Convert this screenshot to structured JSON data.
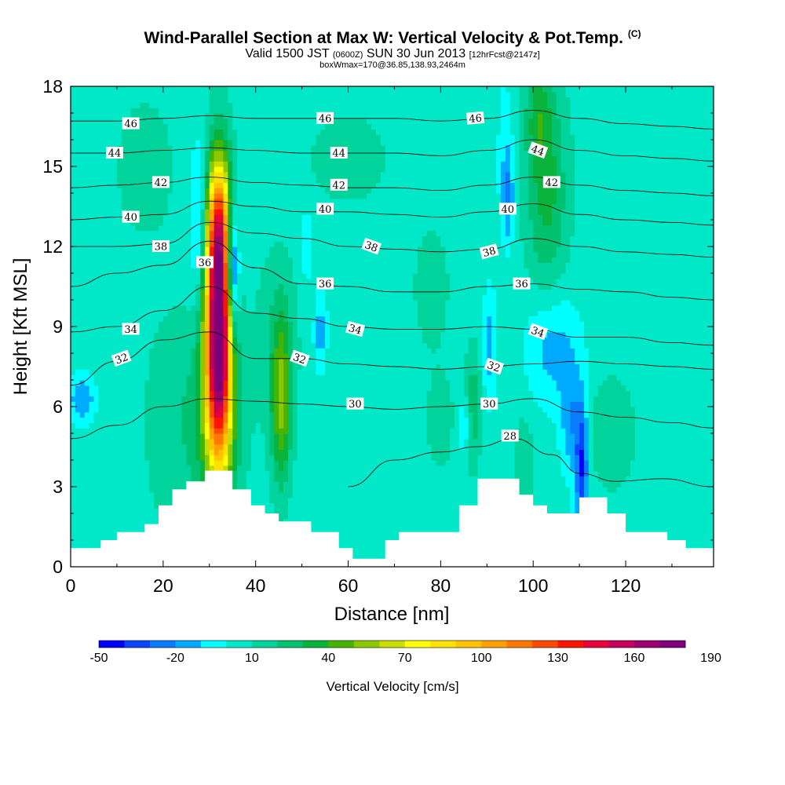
{
  "title": {
    "main": "Wind-Parallel Section at Max W: Vertical Velocity & Pot.Temp.",
    "main_mark": "(C)",
    "valid_a": "Valid 1500 JST",
    "valid_z": "(0600Z)",
    "valid_b": "SUN 30 Jun 2013",
    "valid_fcst": "[12hrFcst@2147z]",
    "sub": "boxWmax=170@36.85,138.93,2464m"
  },
  "chart_data": {
    "type": "heatmap",
    "xlabel": "Distance [nm]",
    "ylabel": "Height [Kft MSL]",
    "xlim": [
      0,
      139
    ],
    "ylim": [
      0,
      18
    ],
    "xticks": [
      0,
      20,
      40,
      60,
      80,
      100,
      120
    ],
    "yticks": [
      0,
      3,
      6,
      9,
      12,
      15,
      18
    ],
    "colorbar": {
      "title": "Vertical Velocity [cm/s]",
      "min": -50,
      "step": 10,
      "tick_labels": [
        "-50",
        "-20",
        "10",
        "40",
        "70",
        "100",
        "130",
        "160",
        "190"
      ],
      "tick_values": [
        -50,
        -20,
        10,
        40,
        70,
        100,
        130,
        160,
        190
      ],
      "colors": [
        "#0000ff",
        "#0a46ff",
        "#0a7cff",
        "#00aaff",
        "#00ffff",
        "#00e8c8",
        "#00d49c",
        "#00c270",
        "#0ab43c",
        "#46b400",
        "#8cc800",
        "#c8dc00",
        "#ffff00",
        "#ffe100",
        "#ffc300",
        "#ffa000",
        "#ff7800",
        "#ff4b00",
        "#ff1400",
        "#e6003c",
        "#c3005a",
        "#9b006e",
        "#7d0078"
      ]
    },
    "terrain_kft": [
      [
        0,
        0.7
      ],
      [
        6.5,
        0.7
      ],
      [
        6.5,
        1.0
      ],
      [
        10,
        1.0
      ],
      [
        10,
        1.3
      ],
      [
        16,
        1.3
      ],
      [
        16,
        1.6
      ],
      [
        19,
        1.6
      ],
      [
        19,
        2.3
      ],
      [
        22,
        2.3
      ],
      [
        22,
        2.9
      ],
      [
        25,
        2.9
      ],
      [
        25,
        3.2
      ],
      [
        29,
        3.2
      ],
      [
        29,
        3.6
      ],
      [
        35,
        3.6
      ],
      [
        35,
        2.9
      ],
      [
        39,
        2.9
      ],
      [
        39,
        2.3
      ],
      [
        42,
        2.3
      ],
      [
        42,
        2.0
      ],
      [
        45,
        2.0
      ],
      [
        45,
        1.7
      ],
      [
        52,
        1.7
      ],
      [
        52,
        1.3
      ],
      [
        58,
        1.3
      ],
      [
        58,
        0.7
      ],
      [
        61,
        0.7
      ],
      [
        61,
        0.3
      ],
      [
        68,
        0.3
      ],
      [
        68,
        1.0
      ],
      [
        71,
        1.0
      ],
      [
        71,
        1.3
      ],
      [
        84,
        1.3
      ],
      [
        84,
        2.3
      ],
      [
        88,
        2.3
      ],
      [
        88,
        3.3
      ],
      [
        97,
        3.3
      ],
      [
        97,
        2.7
      ],
      [
        100,
        2.7
      ],
      [
        100,
        2.3
      ],
      [
        103,
        2.3
      ],
      [
        103,
        2.0
      ],
      [
        110,
        2.0
      ],
      [
        110,
        2.6
      ],
      [
        116,
        2.6
      ],
      [
        116,
        2.0
      ],
      [
        120,
        2.0
      ],
      [
        120,
        1.3
      ],
      [
        129,
        1.3
      ],
      [
        129,
        1.0
      ],
      [
        133,
        1.0
      ],
      [
        133,
        0.7
      ],
      [
        139,
        0.7
      ]
    ],
    "w_features": [
      {
        "x": 32,
        "z": 9.0,
        "sx": 2.0,
        "sz": 3.4,
        "w": 180
      },
      {
        "x": 31.5,
        "z": 5.5,
        "sx": 3.8,
        "sz": 2.6,
        "w": 30
      },
      {
        "x": 32,
        "z": 13.0,
        "sx": 2.2,
        "sz": 1.8,
        "w": 55
      },
      {
        "x": 35,
        "z": 11.2,
        "sx": 1.0,
        "sz": 1.8,
        "w": -70
      },
      {
        "x": 28,
        "z": 13.0,
        "sx": 1.5,
        "sz": 2.0,
        "w": -30
      },
      {
        "x": 45.5,
        "z": 6.2,
        "sx": 1.5,
        "sz": 2.2,
        "w": 45
      },
      {
        "x": 44.5,
        "z": 8.5,
        "sx": 3.5,
        "sz": 2.5,
        "w": 12
      },
      {
        "x": 2.5,
        "z": 6.3,
        "sx": 2.0,
        "sz": 0.6,
        "w": -25
      },
      {
        "x": 22,
        "z": 5.5,
        "sx": 4.5,
        "sz": 3.0,
        "w": 12
      },
      {
        "x": 103,
        "z": 14.0,
        "sx": 3.2,
        "sz": 3.0,
        "w": 28
      },
      {
        "x": 101,
        "z": 17.0,
        "sx": 2.0,
        "sz": 1.5,
        "w": 20
      },
      {
        "x": 94,
        "z": 16.3,
        "sx": 1.2,
        "sz": 1.5,
        "w": -10
      },
      {
        "x": 94.5,
        "z": 13.8,
        "sx": 1.0,
        "sz": 1.2,
        "w": -28
      },
      {
        "x": 104,
        "z": 8.3,
        "sx": 4.0,
        "sz": 1.6,
        "w": -22
      },
      {
        "x": 110.5,
        "z": 3.8,
        "sx": 1.0,
        "sz": 1.8,
        "w": -45
      },
      {
        "x": 108,
        "z": 5.5,
        "sx": 1.5,
        "sz": 1.5,
        "w": -22
      },
      {
        "x": 117,
        "z": 5.0,
        "sx": 3.5,
        "sz": 1.5,
        "w": 14
      },
      {
        "x": 87,
        "z": 6.0,
        "sx": 1.2,
        "sz": 1.6,
        "w": 22
      },
      {
        "x": 98,
        "z": 3.8,
        "sx": 1.5,
        "sz": 1.4,
        "w": 14
      },
      {
        "x": 90.5,
        "z": 8.3,
        "sx": 1.0,
        "sz": 1.5,
        "w": -20
      },
      {
        "x": 78,
        "z": 10.5,
        "sx": 2.5,
        "sz": 1.5,
        "w": 14
      },
      {
        "x": 60,
        "z": 15.3,
        "sx": 6.0,
        "sz": 1.2,
        "w": 12
      },
      {
        "x": 16,
        "z": 15.0,
        "sx": 5.0,
        "sz": 2.0,
        "w": 10
      },
      {
        "x": 54,
        "z": 8.8,
        "sx": 1.0,
        "sz": 1.0,
        "w": -20
      },
      {
        "x": 51,
        "z": 12.0,
        "sx": 0.8,
        "sz": 1.0,
        "w": -15
      },
      {
        "x": 85,
        "z": 5.3,
        "sx": 1.0,
        "sz": 0.7,
        "w": -20
      },
      {
        "x": 80,
        "z": 5.5,
        "sx": 2.5,
        "sz": 1.4,
        "w": 10
      }
    ],
    "w_background": 5,
    "theta_contours": [
      {
        "value": 28,
        "label": "28",
        "points": [
          [
            60,
            3.0
          ],
          [
            70,
            4.0
          ],
          [
            80,
            4.3
          ],
          [
            88,
            4.5
          ],
          [
            96,
            4.8
          ],
          [
            104,
            4.2
          ],
          [
            110,
            3.5
          ],
          [
            118,
            3.2
          ],
          [
            128,
            3.3
          ],
          [
            139,
            3.0
          ]
        ]
      },
      {
        "value": 30,
        "label": "30",
        "points": [
          [
            0,
            4.8
          ],
          [
            10,
            5.3
          ],
          [
            20,
            6.0
          ],
          [
            30,
            6.3
          ],
          [
            40,
            6.2
          ],
          [
            50,
            6.1
          ],
          [
            60,
            6.0
          ],
          [
            70,
            5.9
          ],
          [
            80,
            6.0
          ],
          [
            90,
            6.1
          ],
          [
            100,
            6.3
          ],
          [
            110,
            5.8
          ],
          [
            120,
            5.6
          ],
          [
            130,
            5.4
          ],
          [
            139,
            5.2
          ]
        ]
      },
      {
        "value": 32,
        "label": "32",
        "points": [
          [
            0,
            6.8
          ],
          [
            10,
            7.7
          ],
          [
            20,
            8.5
          ],
          [
            30,
            8.8
          ],
          [
            40,
            7.8
          ],
          [
            50,
            7.8
          ],
          [
            60,
            7.6
          ],
          [
            70,
            7.5
          ],
          [
            80,
            7.4
          ],
          [
            90,
            7.5
          ],
          [
            100,
            7.6
          ],
          [
            110,
            7.7
          ],
          [
            120,
            7.6
          ],
          [
            130,
            7.5
          ],
          [
            139,
            7.4
          ]
        ]
      },
      {
        "value": 34,
        "label": "34",
        "points": [
          [
            0,
            8.8
          ],
          [
            10,
            9.0
          ],
          [
            20,
            9.6
          ],
          [
            30,
            10.5
          ],
          [
            40,
            9.5
          ],
          [
            50,
            9.3
          ],
          [
            60,
            9.0
          ],
          [
            70,
            8.9
          ],
          [
            80,
            8.9
          ],
          [
            90,
            9.0
          ],
          [
            100,
            8.9
          ],
          [
            110,
            8.6
          ],
          [
            120,
            8.6
          ],
          [
            130,
            8.4
          ],
          [
            139,
            8.3
          ]
        ]
      },
      {
        "value": 36,
        "label": "36",
        "points": [
          [
            0,
            10.5
          ],
          [
            10,
            11.0
          ],
          [
            20,
            11.3
          ],
          [
            30,
            12.2
          ],
          [
            40,
            11.2
          ],
          [
            50,
            10.6
          ],
          [
            60,
            10.5
          ],
          [
            70,
            10.3
          ],
          [
            80,
            10.3
          ],
          [
            90,
            10.5
          ],
          [
            100,
            10.6
          ],
          [
            110,
            10.4
          ],
          [
            120,
            10.3
          ],
          [
            130,
            10.1
          ],
          [
            139,
            10.0
          ]
        ]
      },
      {
        "value": 38,
        "label": "38",
        "points": [
          [
            0,
            12.0
          ],
          [
            10,
            12.0
          ],
          [
            20,
            12.1
          ],
          [
            30,
            12.9
          ],
          [
            40,
            12.5
          ],
          [
            50,
            12.3
          ],
          [
            60,
            12.0
          ],
          [
            70,
            11.9
          ],
          [
            80,
            11.8
          ],
          [
            90,
            11.9
          ],
          [
            100,
            12.3
          ],
          [
            110,
            12.0
          ],
          [
            120,
            11.8
          ],
          [
            130,
            11.7
          ],
          [
            139,
            11.6
          ]
        ]
      },
      {
        "value": 40,
        "label": "40",
        "points": [
          [
            0,
            13.0
          ],
          [
            10,
            13.1
          ],
          [
            20,
            13.2
          ],
          [
            30,
            13.7
          ],
          [
            40,
            13.5
          ],
          [
            50,
            13.3
          ],
          [
            60,
            13.3
          ],
          [
            70,
            13.2
          ],
          [
            80,
            13.1
          ],
          [
            90,
            13.3
          ],
          [
            100,
            13.6
          ],
          [
            110,
            13.2
          ],
          [
            120,
            13.0
          ],
          [
            130,
            12.9
          ],
          [
            139,
            12.8
          ]
        ]
      },
      {
        "value": 42,
        "label": "42",
        "points": [
          [
            0,
            14.2
          ],
          [
            10,
            14.3
          ],
          [
            20,
            14.4
          ],
          [
            30,
            14.6
          ],
          [
            40,
            14.4
          ],
          [
            50,
            14.3
          ],
          [
            60,
            14.2
          ],
          [
            70,
            14.2
          ],
          [
            80,
            14.1
          ],
          [
            90,
            14.3
          ],
          [
            100,
            14.6
          ],
          [
            110,
            14.3
          ],
          [
            120,
            14.1
          ],
          [
            130,
            14.0
          ],
          [
            139,
            13.9
          ]
        ]
      },
      {
        "value": 44,
        "label": "44",
        "points": [
          [
            0,
            15.5
          ],
          [
            10,
            15.5
          ],
          [
            20,
            15.6
          ],
          [
            30,
            15.7
          ],
          [
            40,
            15.6
          ],
          [
            50,
            15.5
          ],
          [
            60,
            15.5
          ],
          [
            70,
            15.5
          ],
          [
            80,
            15.4
          ],
          [
            90,
            15.6
          ],
          [
            100,
            16.0
          ],
          [
            110,
            15.6
          ],
          [
            120,
            15.4
          ],
          [
            130,
            15.3
          ],
          [
            139,
            15.2
          ]
        ]
      },
      {
        "value": 46,
        "label": "46",
        "points": [
          [
            0,
            16.7
          ],
          [
            10,
            16.7
          ],
          [
            20,
            16.8
          ],
          [
            30,
            16.9
          ],
          [
            40,
            16.8
          ],
          [
            50,
            16.8
          ],
          [
            60,
            16.8
          ],
          [
            70,
            16.8
          ],
          [
            80,
            16.7
          ],
          [
            90,
            16.8
          ],
          [
            100,
            17.1
          ],
          [
            110,
            16.8
          ],
          [
            120,
            16.6
          ],
          [
            130,
            16.5
          ],
          [
            139,
            16.4
          ]
        ]
      }
    ],
    "contour_labels": [
      {
        "text": "46",
        "x": 13,
        "z": 16.6,
        "angle": 0
      },
      {
        "text": "46",
        "x": 55,
        "z": 16.8,
        "angle": 0
      },
      {
        "text": "46",
        "x": 87.5,
        "z": 16.8,
        "angle": -5
      },
      {
        "text": "44",
        "x": 9.5,
        "z": 15.5,
        "angle": 0
      },
      {
        "text": "44",
        "x": 58,
        "z": 15.5,
        "angle": 0
      },
      {
        "text": "44",
        "x": 101,
        "z": 15.6,
        "angle": 20
      },
      {
        "text": "42",
        "x": 19.5,
        "z": 14.4,
        "angle": 0
      },
      {
        "text": "42",
        "x": 58,
        "z": 14.3,
        "angle": 0
      },
      {
        "text": "42",
        "x": 104,
        "z": 14.4,
        "angle": 0
      },
      {
        "text": "40",
        "x": 13,
        "z": 13.1,
        "angle": 0
      },
      {
        "text": "40",
        "x": 55,
        "z": 13.4,
        "angle": 0
      },
      {
        "text": "40",
        "x": 94.5,
        "z": 13.4,
        "angle": 0
      },
      {
        "text": "38",
        "x": 19.5,
        "z": 12.0,
        "angle": 0
      },
      {
        "text": "38",
        "x": 65,
        "z": 12.0,
        "angle": 20
      },
      {
        "text": "38",
        "x": 90.5,
        "z": 11.8,
        "angle": -15
      },
      {
        "text": "36",
        "x": 29,
        "z": 11.4,
        "angle": 0
      },
      {
        "text": "36",
        "x": 55,
        "z": 10.6,
        "angle": 0
      },
      {
        "text": "36",
        "x": 97.5,
        "z": 10.6,
        "angle": 0
      },
      {
        "text": "34",
        "x": 13,
        "z": 8.9,
        "angle": 0
      },
      {
        "text": "34",
        "x": 61.5,
        "z": 8.9,
        "angle": 15
      },
      {
        "text": "34",
        "x": 101,
        "z": 8.8,
        "angle": 20
      },
      {
        "text": "32",
        "x": 11,
        "z": 7.8,
        "angle": -20
      },
      {
        "text": "32",
        "x": 49.5,
        "z": 7.8,
        "angle": 20
      },
      {
        "text": "32",
        "x": 91.5,
        "z": 7.5,
        "angle": 20
      },
      {
        "text": "30",
        "x": 61.5,
        "z": 6.1,
        "angle": 0
      },
      {
        "text": "30",
        "x": 90.5,
        "z": 6.1,
        "angle": 0
      },
      {
        "text": "28",
        "x": 95,
        "z": 4.9,
        "angle": 0
      }
    ]
  }
}
